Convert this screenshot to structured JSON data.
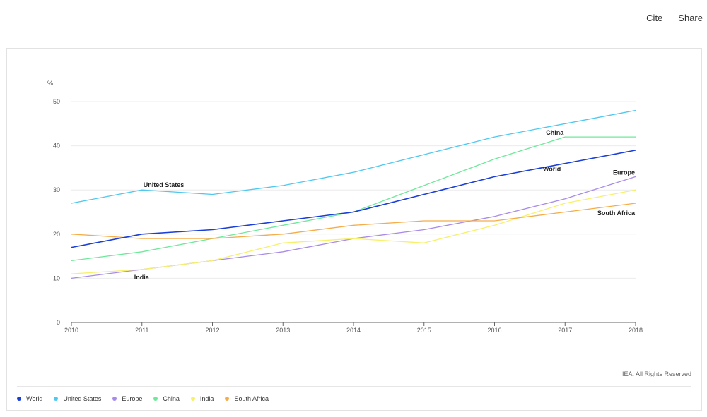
{
  "topbar": {
    "cite_label": "Cite",
    "share_label": "Share"
  },
  "credits": "IEA. All Rights Reserved",
  "chart_data": {
    "type": "line",
    "ylabel": "%",
    "ylim": [
      0,
      50
    ],
    "yticks": [
      0,
      10,
      20,
      30,
      40,
      50
    ],
    "x": [
      "2010",
      "2011",
      "2012",
      "2013",
      "2014",
      "2015",
      "2016",
      "2017",
      "2018"
    ],
    "grid": true,
    "legend_position": "bottom-left",
    "series": [
      {
        "name": "World",
        "color": "#1a3fd6",
        "values": [
          17,
          20,
          21,
          23,
          25,
          29,
          33,
          36,
          39
        ]
      },
      {
        "name": "United States",
        "color": "#4fc8f0",
        "values": [
          27,
          30,
          29,
          31,
          34,
          38,
          42,
          45,
          48
        ]
      },
      {
        "name": "Europe",
        "color": "#a88be8",
        "values": [
          10,
          12,
          14,
          16,
          19,
          21,
          24,
          28,
          33
        ]
      },
      {
        "name": "China",
        "color": "#6ee89a",
        "values": [
          14,
          16,
          19,
          22,
          25,
          31,
          37,
          42,
          42
        ]
      },
      {
        "name": "India",
        "color": "#f7f06a",
        "values": [
          11,
          12,
          14,
          18,
          19,
          18,
          22,
          27,
          30
        ]
      },
      {
        "name": "South Africa",
        "color": "#f5ad4a",
        "values": [
          20,
          19,
          19,
          20,
          22,
          23,
          23,
          25,
          27
        ]
      }
    ],
    "line_labels": [
      {
        "series": "United States",
        "text": "United States",
        "x_index": 1,
        "value": 30
      },
      {
        "series": "China",
        "text": "China",
        "x_index": 7,
        "value": 42
      },
      {
        "series": "World",
        "text": "World",
        "x_index": 7,
        "value": 36
      },
      {
        "series": "Europe",
        "text": "Europe",
        "x_index": 8,
        "value": 33
      },
      {
        "series": "South Africa",
        "text": "South Africa",
        "x_index": 8,
        "value": 27
      },
      {
        "series": "India",
        "text": "India",
        "x_index": 1,
        "value": 12
      }
    ]
  }
}
